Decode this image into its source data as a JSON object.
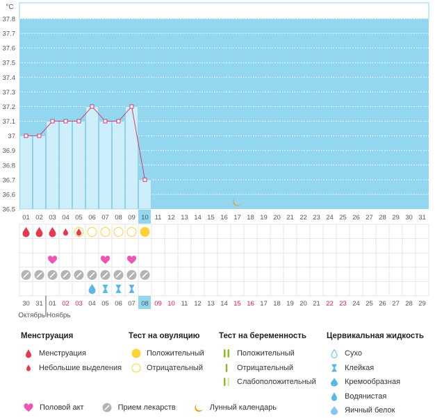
{
  "unit": "°C",
  "chart_data": {
    "type": "line",
    "title": "",
    "ylabel": "°C",
    "ylim": [
      36.5,
      37.8
    ],
    "y_ticks": [
      "36.5",
      "36.6",
      "36.7",
      "36.8",
      "36.9",
      "37",
      "37.1",
      "37.2",
      "37.3",
      "37.4",
      "37.5",
      "37.6",
      "37.7",
      "37.8"
    ],
    "x_ticks": [
      "01",
      "02",
      "03",
      "04",
      "05",
      "06",
      "07",
      "08",
      "09",
      "10",
      "11",
      "12",
      "13",
      "14",
      "15",
      "16",
      "17",
      "18",
      "19",
      "20",
      "21",
      "22",
      "23",
      "24",
      "25",
      "26",
      "27",
      "28",
      "29",
      "30",
      "31"
    ],
    "series": [
      {
        "values": [
          37.0,
          37.0,
          37.1,
          37.1,
          37.1,
          37.2,
          37.1,
          37.1,
          37.2,
          36.7
        ]
      }
    ],
    "highlighted_cycle_day": "10",
    "moon_day": "17"
  },
  "calendar": {
    "dates": [
      "30",
      "31",
      "01",
      "02",
      "03",
      "04",
      "05",
      "06",
      "07",
      "08",
      "09",
      "10",
      "11",
      "12",
      "13",
      "14",
      "15",
      "16",
      "17",
      "18",
      "19",
      "20",
      "21",
      "22",
      "23",
      "24",
      "25",
      "26",
      "27",
      "28",
      "29"
    ],
    "weekend_indices": [
      3,
      4,
      10,
      11,
      16,
      17,
      23,
      24
    ],
    "current_index": 9,
    "month_break_index": 1,
    "months": [
      "Октябрь",
      "Ноябрь"
    ]
  },
  "markers": {
    "menstruation": [
      "big",
      "big",
      "big",
      "small",
      "small"
    ],
    "ovulation": [
      "",
      "",
      "",
      "",
      "negative",
      "negative",
      "negative",
      "negative",
      "negative",
      "positive"
    ],
    "intercourse_days": [
      2,
      6,
      8
    ],
    "medication_days": [
      0,
      1,
      2,
      3,
      4,
      5,
      6,
      7,
      8,
      9
    ],
    "cervical": {
      "5": "watery",
      "6": "sticky",
      "7": "sticky",
      "8": "sticky"
    }
  },
  "legend": {
    "menstruation": {
      "title": "Менструация",
      "items": [
        "Менструация",
        "Небольшие выделения"
      ]
    },
    "ovulation": {
      "title": "Тест на овуляцию",
      "items": [
        "Положительный",
        "Отрицательный"
      ]
    },
    "pregnancy": {
      "title": "Тест на беременность",
      "items": [
        "Положительный",
        "Отрицательный",
        "Слабоположительный"
      ]
    },
    "cervical": {
      "title": "Цервикальная жидкость",
      "items": [
        "Сухо",
        "Клейкая",
        "Кремообразная",
        "Водянистая",
        "Яичный белок"
      ]
    },
    "bottom": [
      "Половой акт",
      "Прием лекарств",
      "Лунный календарь"
    ]
  },
  "colors": {
    "plot_bg": "#92d6f0",
    "bar_fill": "#cdeefb",
    "bar_stroke": "#7cc7e6",
    "line": "#d9386a",
    "highlight": "#92d6f0",
    "menstruation": "#e53950",
    "ovulation": "#ffd23a",
    "heart": "#ef55b4",
    "pill": "#b3b3b3",
    "moon": "#f29a1e",
    "weekend": "#e5184a"
  }
}
